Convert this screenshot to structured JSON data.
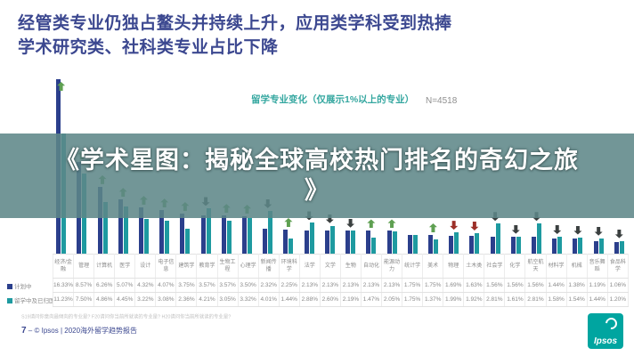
{
  "header": {
    "title_line1": "经管类专业仍独占鳌头并持续上升，应用类学科受到热捧",
    "title_line2": "学术研究类、社科类专业占比下降"
  },
  "chart": {
    "title": "留学专业变化（仅展示1%以上的专业）",
    "n_label": "N=4518"
  },
  "banner": {
    "line1": "《学术星图：揭秘全球高校热门排名的奇幻之旅",
    "line2": "》"
  },
  "chart_data": {
    "type": "bar",
    "title": "留学专业变化（仅展示1%以上的专业）",
    "sample": "N=4518",
    "unit": "%",
    "ylim": [
      0,
      17
    ],
    "grid": false,
    "legend_position": "left-rows",
    "categories": [
      "经济/金融",
      "管理",
      "计算机",
      "医学",
      "设计",
      "电子信息",
      "建筑学",
      "教育学",
      "生物工程",
      "心理学",
      "新闻传播",
      "环境科学",
      "法学",
      "文学",
      "生物",
      "自动化",
      "能源动力",
      "统计学",
      "美术",
      "物理",
      "土木类",
      "社会学",
      "化学",
      "航空航天",
      "材料学",
      "机械",
      "音乐舞蹈",
      "食品科学"
    ],
    "series": [
      {
        "name": "计划中",
        "values": [
          16.33,
          8.57,
          6.26,
          5.07,
          4.32,
          4.07,
          3.75,
          3.57,
          3.57,
          3.5,
          2.32,
          2.25,
          2.13,
          2.13,
          2.13,
          2.13,
          2.13,
          1.75,
          1.75,
          1.69,
          1.63,
          1.56,
          1.56,
          1.56,
          1.44,
          1.38,
          1.19,
          1.06
        ]
      },
      {
        "name": "留学中及已归国",
        "values": [
          11.23,
          7.5,
          4.86,
          4.45,
          3.22,
          3.08,
          2.36,
          4.21,
          3.05,
          3.32,
          4.01,
          1.44,
          2.88,
          2.6,
          2.19,
          1.47,
          2.05,
          1.75,
          1.37,
          1.99,
          1.92,
          2.81,
          1.61,
          2.81,
          1.58,
          1.54,
          1.44,
          1.2
        ]
      }
    ],
    "trend_arrows": [
      "up",
      "up",
      "up",
      "up",
      "up",
      "up",
      "up",
      "down",
      "up",
      "up",
      "down",
      "up",
      "down",
      "down",
      "down",
      "up",
      "up",
      "none",
      "up",
      "down-red",
      "down-red",
      "down",
      "down",
      "down",
      "down",
      "down",
      "down",
      "down"
    ]
  },
  "colors": {
    "bar_planned": "#2b3f8c",
    "bar_current": "#1e9aa0",
    "arrow_up": "#5fa052",
    "arrow_down": "#3b4040",
    "arrow_down_red": "#9c2f28",
    "title_navy": "#3c4890",
    "accent_teal": "#35a7a0",
    "logo_teal": "#00a5a0"
  },
  "footnote": "S19请问你意向最倾向的专业是? F20请问你当前所就读的专业是? H20请问你当前所就读的专业是?",
  "footer": {
    "page": "7",
    "dash": "‒",
    "copyright": "© Ipsos | 2020海外留学趋势报告",
    "logo_label": "Ipsos"
  }
}
